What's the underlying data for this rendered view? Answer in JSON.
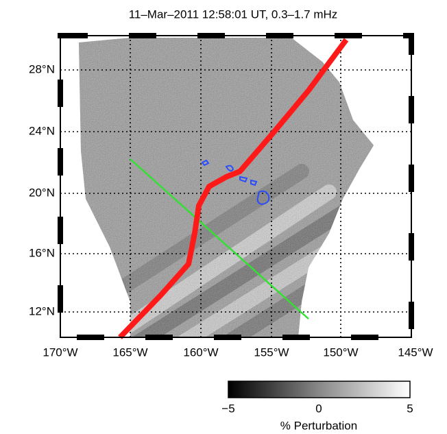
{
  "title": "11–Mar–2011 12:58:01 UT, 0.3–1.7 mHz",
  "lat_labels": [
    "28°N",
    "24°N",
    "20°N",
    "16°N",
    "12°N"
  ],
  "lon_labels": [
    "170°W",
    "165°W",
    "160°W",
    "155°W",
    "150°W",
    "145°W"
  ],
  "colorbar": {
    "tick_labels": [
      "−5",
      "0",
      "5"
    ],
    "label": "% Perturbation"
  }
}
